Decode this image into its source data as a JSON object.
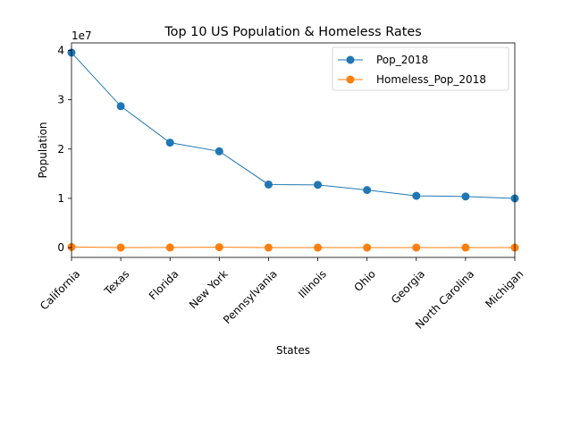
{
  "chart_data": {
    "type": "line",
    "title": "Top 10 US Population & Homeless Rates",
    "xlabel": "States",
    "ylabel": "Population",
    "y_offset_label": "1e7",
    "categories": [
      "California",
      "Texas",
      "Florida",
      "New York",
      "Pennsylvania",
      "Illinois",
      "Ohio",
      "Georgia",
      "North Carolina",
      "Michigan"
    ],
    "series": [
      {
        "name": "Pop_2018",
        "color": "#1f77b4",
        "values": [
          39557045,
          28701845,
          21299325,
          19542209,
          12807060,
          12741080,
          11689442,
          10519475,
          10383620,
          9995915
        ]
      },
      {
        "name": "Homeless_Pop_2018",
        "color": "#ff7f0e",
        "values": [
          129972,
          25310,
          31030,
          91897,
          13512,
          10643,
          10249,
          9499,
          9268,
          8351
        ]
      }
    ],
    "y_ticks": [
      {
        "value": 0,
        "label": "0"
      },
      {
        "value": 10000000,
        "label": "1"
      },
      {
        "value": 20000000,
        "label": "2"
      },
      {
        "value": 30000000,
        "label": "3"
      },
      {
        "value": 40000000,
        "label": "4"
      }
    ],
    "ylim": [
      -1977852,
      41534897
    ],
    "grid": false,
    "legend_position": "upper right",
    "marker": "circle"
  }
}
